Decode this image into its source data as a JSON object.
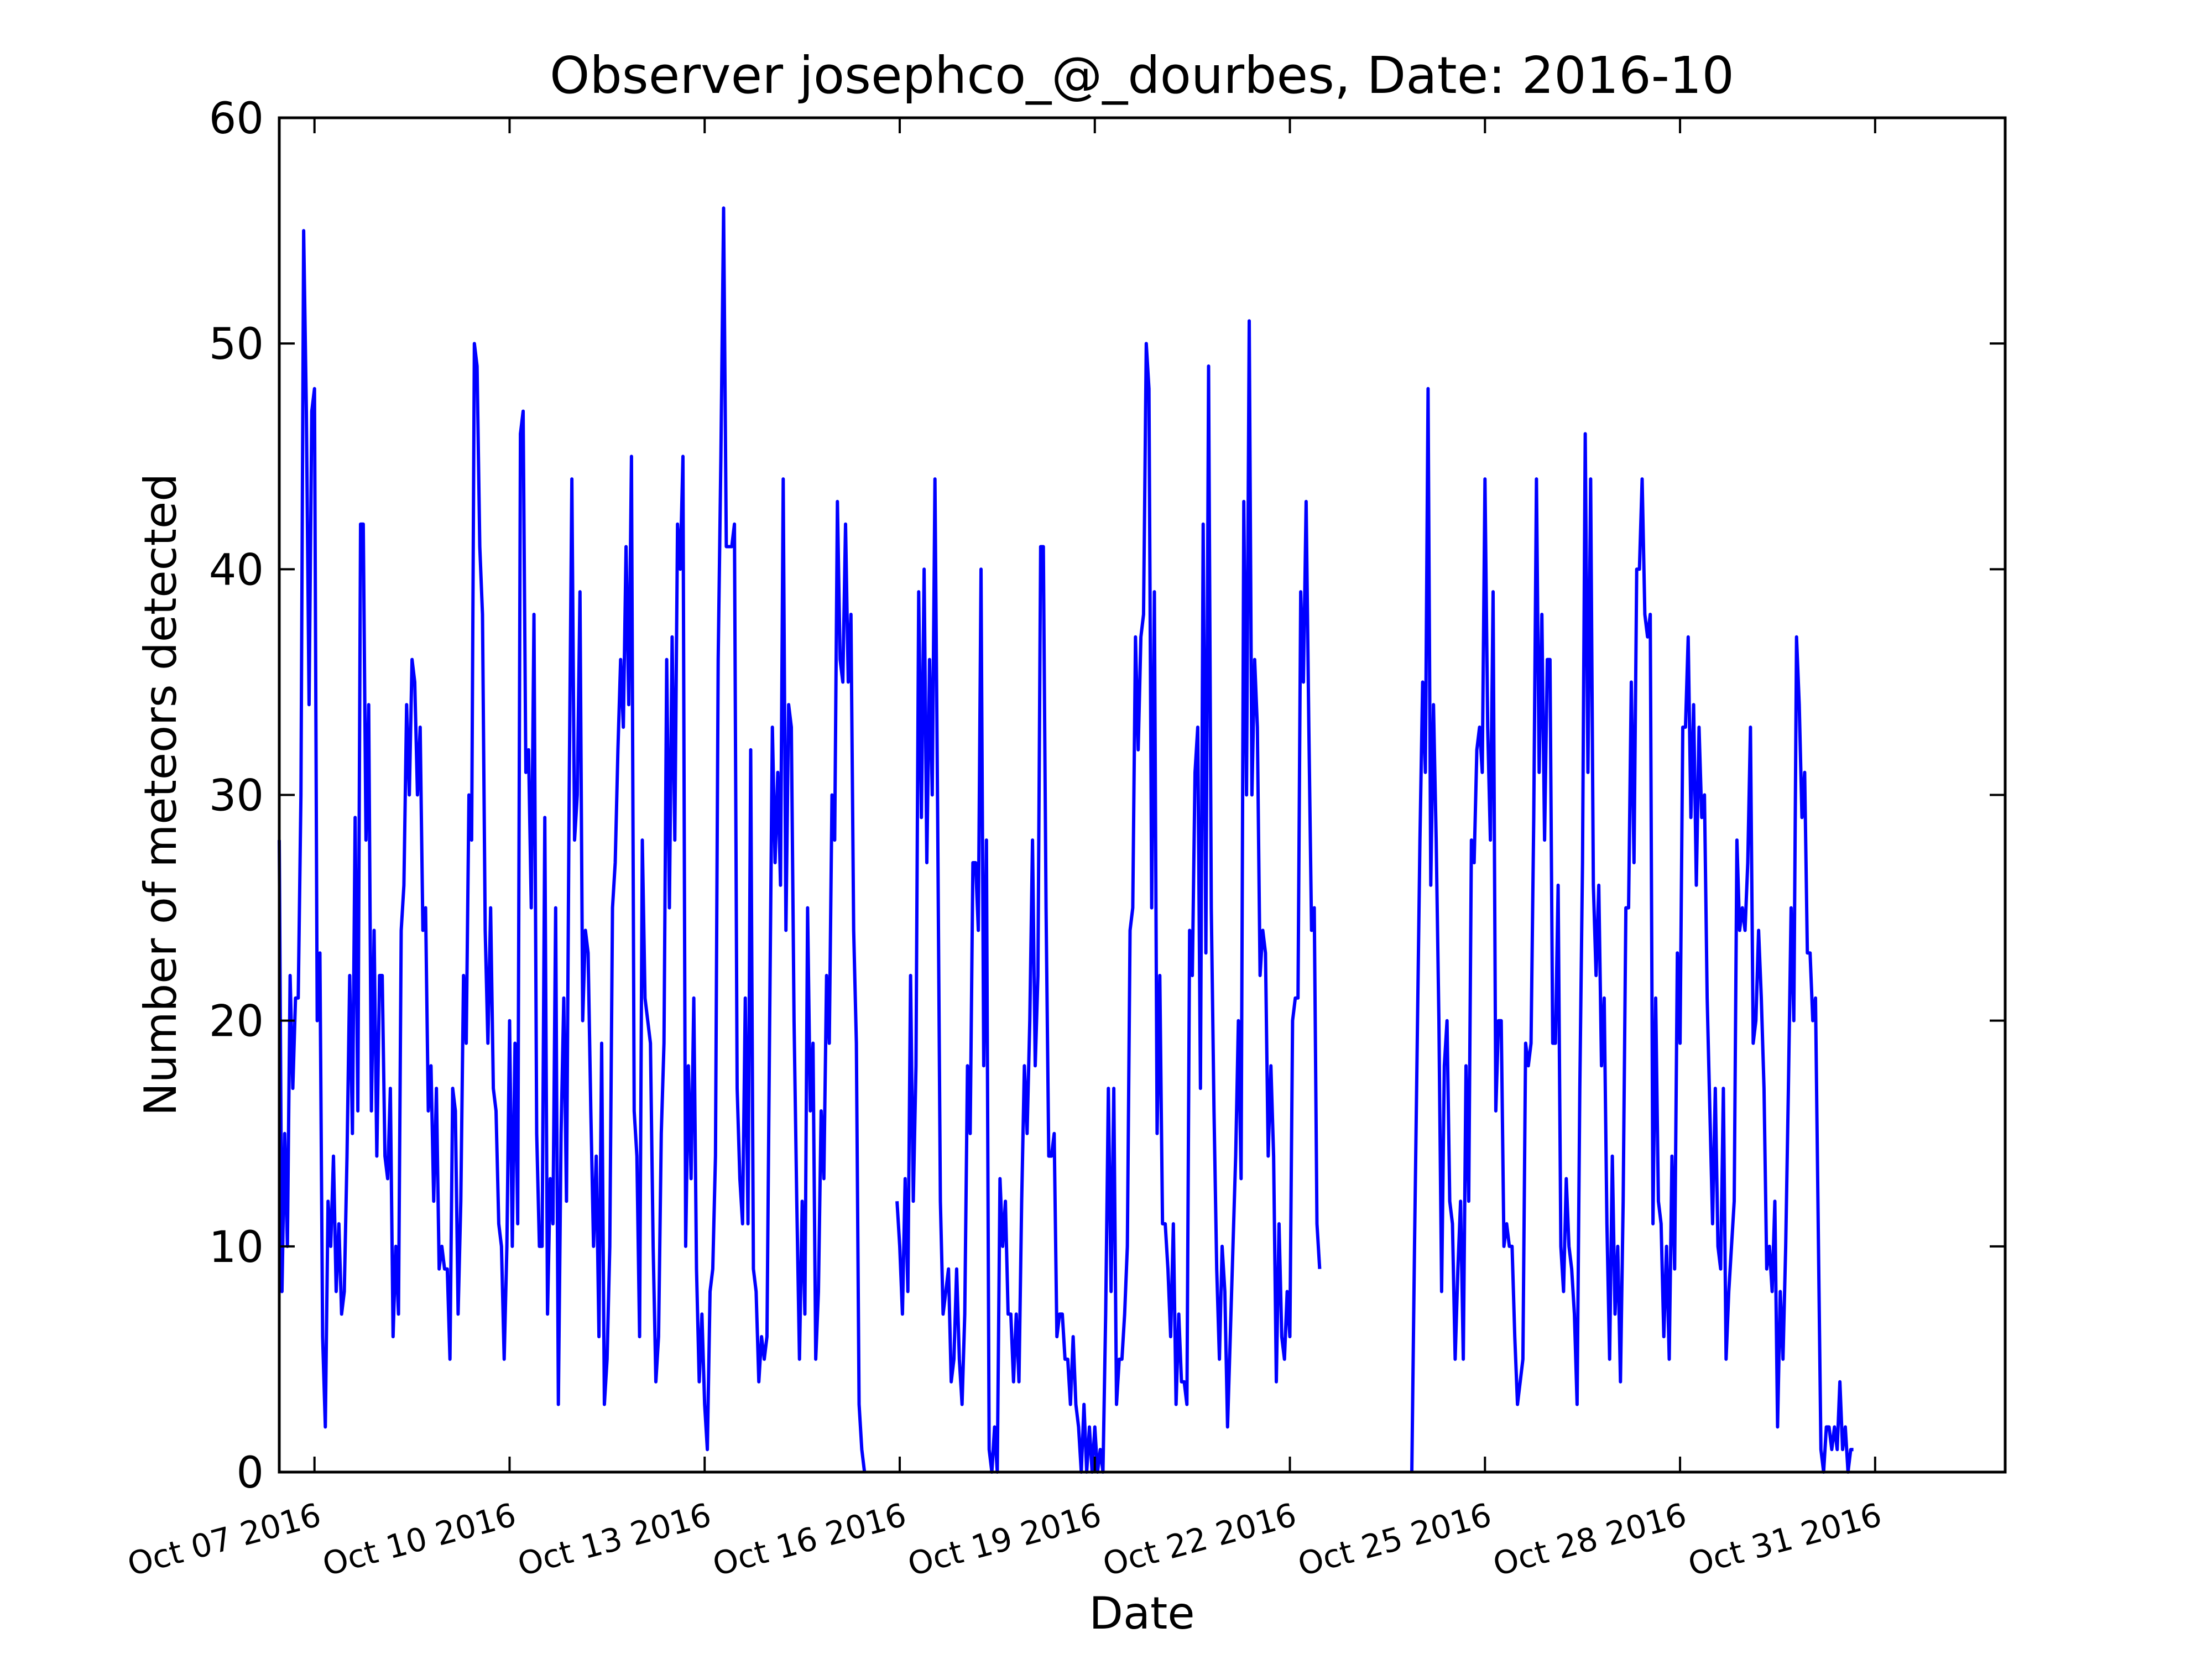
{
  "chart_data": {
    "type": "line",
    "title": "Observer josephco_@_dourbes, Date: 2016-10",
    "xlabel": "Date",
    "ylabel": "Number of meteors detected",
    "ylim": [
      0,
      60
    ],
    "yticks": [
      0,
      10,
      20,
      30,
      40,
      50,
      60
    ],
    "xlim": [
      "2016-10-06 11:00",
      "2016-11-02 00:00"
    ],
    "xticks": [
      {
        "date": "2016-10-07",
        "label": "Oct 07 2016"
      },
      {
        "date": "2016-10-10",
        "label": "Oct 10 2016"
      },
      {
        "date": "2016-10-13",
        "label": "Oct 13 2016"
      },
      {
        "date": "2016-10-16",
        "label": "Oct 16 2016"
      },
      {
        "date": "2016-10-19",
        "label": "Oct 19 2016"
      },
      {
        "date": "2016-10-22",
        "label": "Oct 22 2016"
      },
      {
        "date": "2016-10-25",
        "label": "Oct 25 2016"
      },
      {
        "date": "2016-10-28",
        "label": "Oct 28 2016"
      },
      {
        "date": "2016-10-31",
        "label": "Oct 31 2016"
      }
    ],
    "grid": false,
    "line_color": "#0000ff",
    "series": [
      {
        "interval_hours": 1,
        "segments": [
          {
            "start": "2016-10-06 11:00",
            "values": [
              28,
              8,
              15,
              10,
              22,
              17,
              21,
              21,
              30,
              55,
              47,
              34,
              47,
              48,
              20,
              23,
              6,
              2,
              12,
              10,
              14,
              8,
              11,
              7,
              8,
              14,
              22,
              15,
              29,
              16,
              42,
              42,
              28,
              34,
              16,
              24,
              14,
              22,
              22,
              14,
              13,
              17,
              6,
              10,
              7,
              24,
              26,
              34,
              30,
              36,
              35,
              30,
              33,
              24,
              25,
              16,
              18,
              12,
              17,
              9,
              10,
              9,
              9,
              5,
              17,
              16,
              7,
              12,
              22,
              19,
              30,
              28,
              50,
              49,
              41,
              38,
              24,
              19,
              25,
              17,
              16,
              11,
              10,
              5,
              10,
              20,
              10,
              19,
              11,
              46,
              47,
              31,
              32,
              25,
              38,
              15,
              10,
              10,
              29,
              7,
              13,
              11,
              25,
              3,
              15,
              21,
              12,
              30,
              44,
              28,
              30,
              39,
              20,
              24,
              23,
              16,
              10,
              14,
              6,
              19,
              3,
              5,
              10,
              25,
              27,
              32,
              36,
              33,
              41,
              34,
              45,
              16,
              14,
              6,
              28,
              21,
              20,
              19,
              10,
              4,
              6,
              15,
              19,
              36,
              25,
              37,
              28,
              42,
              40,
              45,
              10,
              18,
              13,
              21,
              9,
              4,
              7,
              3,
              1,
              8,
              9,
              14,
              36,
              45,
              56,
              41,
              41,
              41,
              42,
              17,
              13,
              11,
              21,
              11,
              32,
              9,
              8,
              4,
              6,
              5,
              6,
              20,
              33,
              27,
              31,
              26,
              44,
              24,
              34,
              33,
              20,
              12,
              5,
              12,
              7,
              25,
              16,
              19,
              5,
              8,
              16,
              13,
              22,
              19,
              30,
              28,
              43,
              36,
              35,
              42,
              35,
              38,
              24,
              19,
              3,
              1,
              0
            ]
          },
          {
            "start": "2016-10-15 23:00",
            "values": [
              12,
              10,
              7,
              13,
              8,
              22,
              12,
              18,
              39,
              29,
              40,
              27,
              36,
              30,
              44,
              29,
              12,
              7,
              8,
              9,
              4,
              5,
              9,
              5,
              3,
              7,
              18,
              15,
              27,
              27,
              24,
              40,
              18,
              28,
              1,
              0,
              2,
              0,
              13,
              10,
              12,
              7,
              7,
              4,
              7,
              4,
              12,
              18,
              15,
              20,
              28,
              18,
              22,
              41,
              41,
              25,
              14,
              14,
              15,
              6,
              7,
              7,
              5,
              5,
              3,
              6,
              3,
              2,
              0,
              3,
              0,
              2,
              0,
              2,
              0,
              1,
              0,
              7,
              17,
              8,
              17,
              3,
              5,
              5,
              7,
              10,
              24,
              25,
              37,
              32,
              37,
              38,
              50,
              48,
              25,
              39,
              15,
              22,
              11,
              11,
              9,
              6,
              11,
              3,
              7,
              4,
              4,
              3,
              24,
              22,
              31,
              33,
              17,
              42,
              23,
              49,
              25,
              16,
              9,
              5,
              10,
              8,
              2,
              6,
              10,
              14,
              20,
              13,
              43,
              30,
              51,
              30,
              36,
              33,
              22,
              24,
              23,
              14,
              18,
              14,
              4,
              11,
              6,
              5,
              8,
              6,
              20,
              21,
              21,
              39,
              35,
              43,
              33,
              24,
              25,
              11,
              9
            ]
          },
          {
            "start": "2016-10-23 21:00",
            "values": [
              0,
              10,
              19,
              28,
              35,
              31,
              48,
              26,
              34,
              28,
              20,
              8,
              18,
              20,
              12,
              11,
              5,
              9,
              12,
              5,
              18,
              12,
              28,
              27,
              32,
              33,
              31,
              44,
              33,
              28,
              39,
              16,
              20,
              20,
              10,
              11,
              10,
              10,
              6,
              3,
              4,
              5,
              19,
              18,
              19,
              29,
              44,
              31,
              38,
              28,
              36,
              36,
              19,
              19,
              26,
              10,
              8,
              13,
              10,
              9,
              7,
              3,
              17,
              27,
              46,
              31,
              44,
              26,
              22,
              26,
              18,
              21,
              11,
              5,
              14,
              7,
              10,
              4,
              12,
              25,
              25,
              35,
              27,
              40,
              40,
              44,
              38,
              37,
              38,
              11,
              21,
              12,
              11,
              6,
              10,
              5,
              14,
              9,
              23,
              19,
              33,
              33,
              37,
              29,
              34,
              26,
              33,
              29,
              30,
              21,
              16,
              11,
              17,
              10,
              9,
              17,
              5,
              8,
              10,
              12,
              28,
              24,
              25,
              24,
              27,
              33,
              19,
              20,
              24,
              21,
              17,
              9,
              10,
              8,
              12,
              2,
              8,
              5,
              10,
              17,
              25,
              20,
              37,
              34,
              29,
              31,
              23,
              23,
              20,
              21,
              11,
              1,
              0,
              2,
              2,
              1,
              2,
              1,
              4,
              1,
              2,
              0,
              1,
              1
            ]
          }
        ]
      }
    ]
  }
}
